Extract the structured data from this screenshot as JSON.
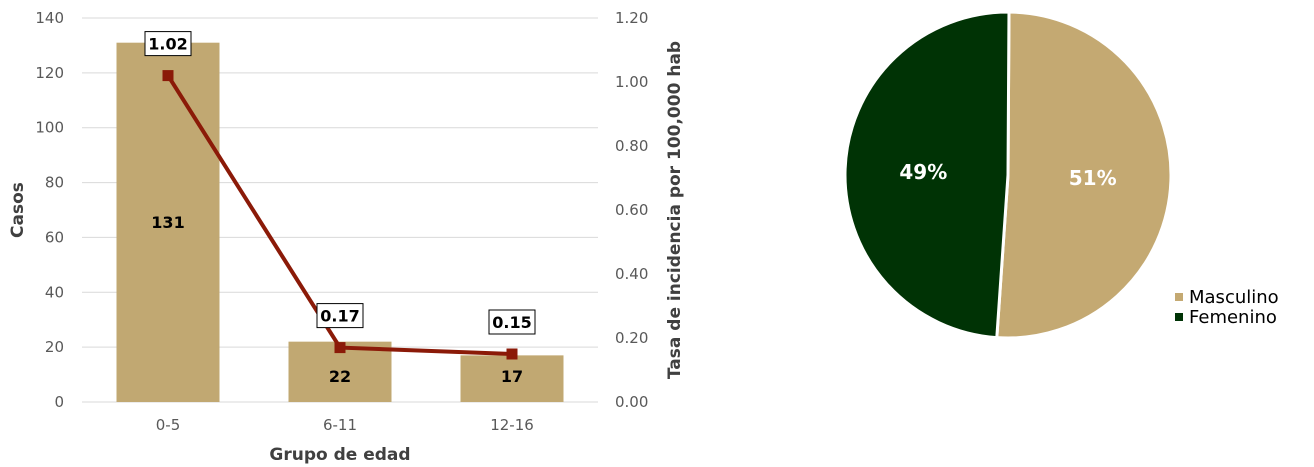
{
  "colors": {
    "bar": "#c1a872",
    "line": "#8b1a08",
    "grid": "#d9d9d9",
    "masculino": "#c4a972",
    "femenino": "#003305"
  },
  "chart_data": [
    {
      "type": "bar",
      "title": "",
      "categories": [
        "0-5",
        "6-11",
        "12-16"
      ],
      "xlabel": "Grupo de edad",
      "ylabel": "Casos",
      "y2label": "Tasa de incidencia por 100,000 hab",
      "ylim": [
        0,
        140
      ],
      "y2lim": [
        0,
        1.2
      ],
      "yticks": [
        "0",
        "20",
        "40",
        "60",
        "80",
        "100",
        "120",
        "140"
      ],
      "y2ticks": [
        "0.00",
        "0.20",
        "0.40",
        "0.60",
        "0.80",
        "1.00",
        "1.20"
      ],
      "grid": true,
      "series": [
        {
          "values": [
            131,
            22,
            17
          ],
          "axis": "left",
          "kind": "bar",
          "labels": [
            "131",
            "22",
            "17"
          ]
        },
        {
          "values": [
            1.02,
            0.17,
            0.15
          ],
          "axis": "right",
          "kind": "line",
          "labels": [
            "1.02",
            "0.17",
            "0.15"
          ]
        }
      ]
    },
    {
      "type": "pie",
      "title": "",
      "legend_position": "bottom-right",
      "slices": [
        {
          "name": "Masculino",
          "value": 51,
          "label": "51%"
        },
        {
          "name": "Femenino",
          "value": 49,
          "label": "49%"
        }
      ]
    }
  ]
}
